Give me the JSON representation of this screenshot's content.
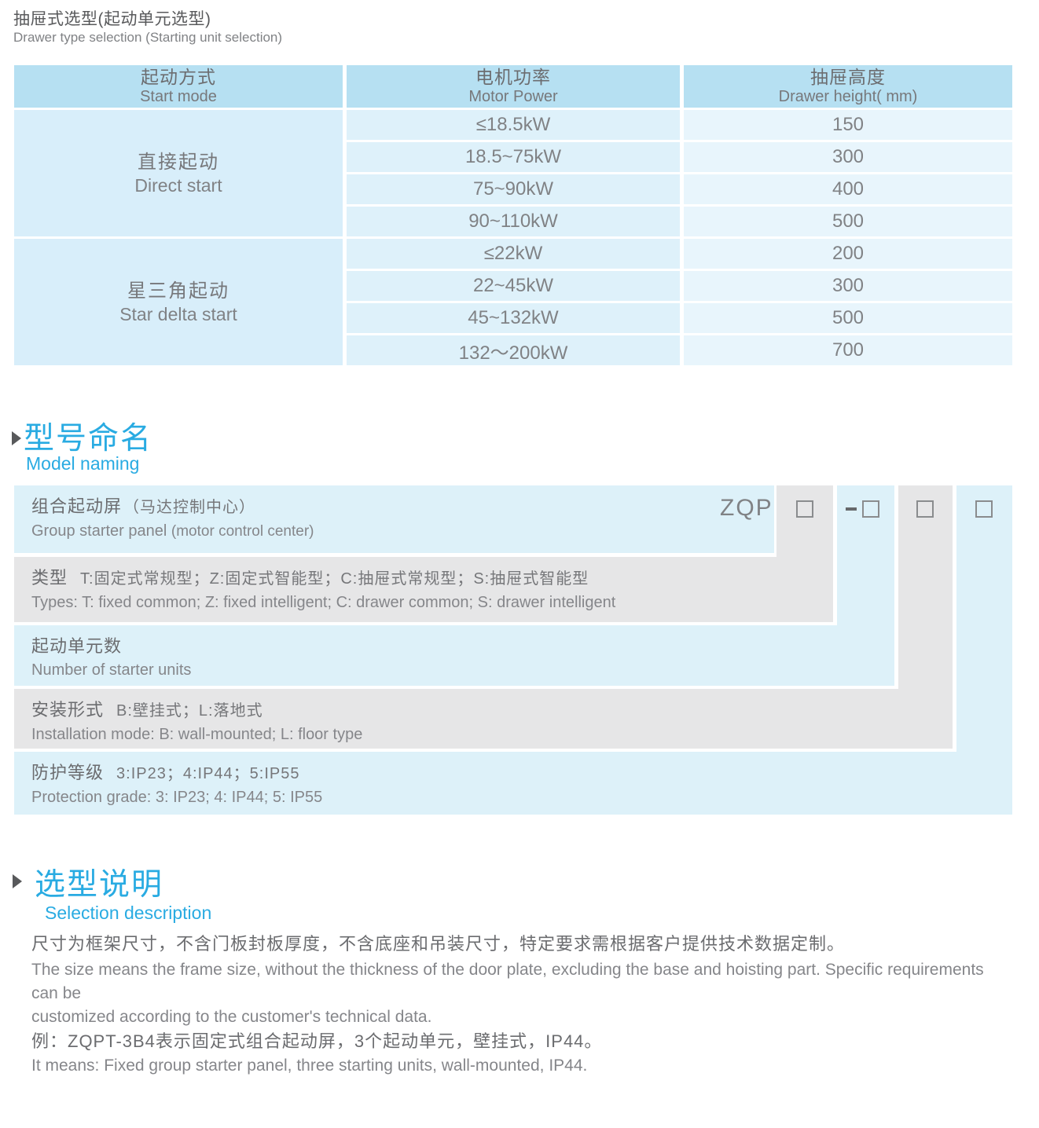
{
  "doc": {
    "title_zh": "抽屉式选型(起动单元选型)",
    "title_en": "Drawer type selection (Starting unit selection)"
  },
  "table": {
    "col1_zh": "起动方式",
    "col1_en": "Start mode",
    "col2_zh": "电机功率",
    "col2_en": "Motor Power",
    "col3_zh": "抽屉高度",
    "col3_en": "Drawer height( mm)",
    "groups": [
      {
        "mode_zh": "直接起动",
        "mode_en": "Direct start",
        "rows": [
          {
            "power": "≤18.5kW",
            "height": "150"
          },
          {
            "power": "18.5~75kW",
            "height": "300"
          },
          {
            "power": "75~90kW",
            "height": "400"
          },
          {
            "power": "90~110kW",
            "height": "500"
          }
        ]
      },
      {
        "mode_zh": "星三角起动",
        "mode_en": "Star delta start",
        "rows": [
          {
            "power": "≤22kW",
            "height": "200"
          },
          {
            "power": "22~45kW",
            "height": "300"
          },
          {
            "power": "45~132kW",
            "height": "500"
          },
          {
            "power": "132～200kW",
            "height": "700"
          }
        ]
      }
    ]
  },
  "model": {
    "title_zh": "型号命名",
    "title_en": "Model naming",
    "prefix": "ZQP",
    "rows": [
      {
        "zh_main": "组合起动屏",
        "zh_sub": "（马达控制中心）",
        "en_main": "Group starter panel",
        "en_sub": "(motor control center)"
      },
      {
        "zh_main": "类型",
        "zh_sub": "T:固定式常规型；Z:固定式智能型；C:抽屉式常规型；S:抽屉式智能型",
        "en": "Types: T: fixed common; Z: fixed intelligent; C: drawer common; S: drawer intelligent"
      },
      {
        "zh_main": "起动单元数",
        "zh_sub": "",
        "en": "Number of starter units"
      },
      {
        "zh_main": "安装形式",
        "zh_sub": "B:壁挂式；L:落地式",
        "en": "Installation mode: B: wall-mounted; L: floor type"
      },
      {
        "zh_main": "防护等级",
        "zh_sub": "3:IP23；4:IP44；5:IP55",
        "en": "Protection grade:  3: IP23; 4: IP44; 5: IP55"
      }
    ]
  },
  "selection": {
    "title_zh": "选型说明",
    "title_en": "Selection description",
    "line1_zh": "尺寸为框架尺寸，不含门板封板厚度，不含底座和吊装尺寸，特定要求需根据客户提供技术数据定制。",
    "line2_en": "The size means the frame size, without the thickness of the door plate, excluding the base and hoisting part. Specific requirements can be",
    "line3_en": "customized according to the customer's technical data.",
    "line4_zh": "例：ZQPT-3B4表示固定式组合起动屏，3个起动单元，壁挂式，IP44。",
    "line5_en": "It means: Fixed group starter panel, three starting units, wall-mounted, IP44."
  },
  "colors": {
    "accent_blue": "#29abe2",
    "table_header": "#b6e0f2",
    "table_cell_blue": "#def1fa",
    "band_blue": "#ddf1f9",
    "band_gray": "#e6e6e7",
    "text_dark": "#58595b",
    "text_gray": "#808285"
  }
}
